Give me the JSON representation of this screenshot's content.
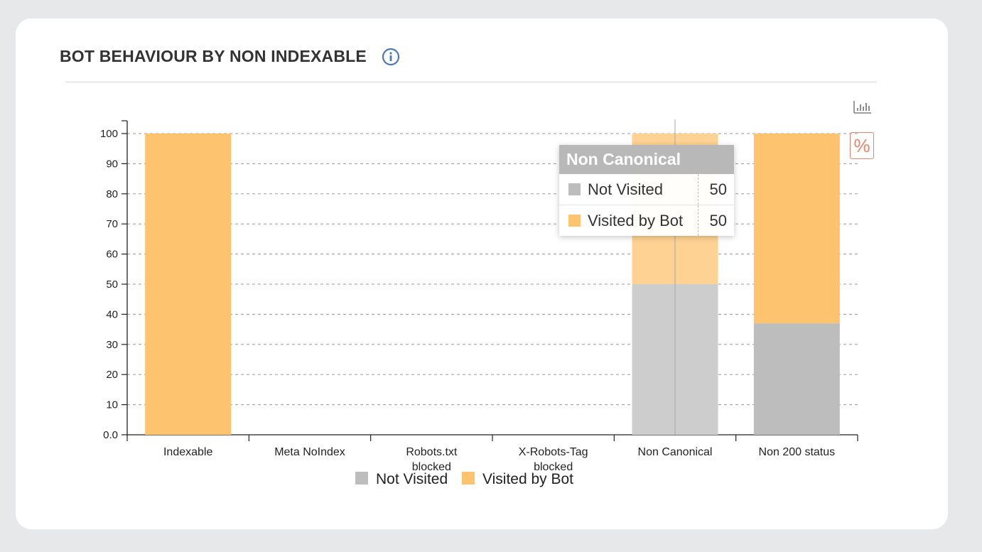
{
  "header": {
    "title": "BOT BEHAVIOUR BY NON INDEXABLE",
    "info_icon": "info-icon"
  },
  "toolbar": {
    "bar_chart_icon": "bar-chart-icon",
    "percent_label": "%"
  },
  "colors": {
    "not_visited": "#bdbdbd",
    "visited_by_bot": "#fec36f",
    "accent": "#e8836a",
    "info": "#4a79b5"
  },
  "chart_data": {
    "type": "bar",
    "stacked": true,
    "categories": [
      "Indexable",
      "Meta NoIndex",
      "Robots.txt blocked",
      "X-Robots-Tag blocked",
      "Non Canonical",
      "Non 200 status"
    ],
    "series": [
      {
        "name": "Not Visited",
        "color": "#bdbdbd",
        "values": [
          0,
          0,
          0,
          0,
          50,
          37
        ]
      },
      {
        "name": "Visited by Bot",
        "color": "#fec36f",
        "values": [
          100,
          0,
          0,
          0,
          50,
          63
        ]
      }
    ],
    "yticks": [
      "0.0",
      "10",
      "20",
      "30",
      "40",
      "50",
      "60",
      "70",
      "80",
      "90",
      "100"
    ],
    "ylim": [
      0,
      100
    ],
    "grid": true,
    "legend_position": "bottom",
    "highlighted_category": "Non Canonical"
  },
  "tooltip": {
    "title": "Non Canonical",
    "rows": [
      {
        "label": "Not Visited",
        "value": "50"
      },
      {
        "label": "Visited by Bot",
        "value": "50"
      }
    ]
  }
}
